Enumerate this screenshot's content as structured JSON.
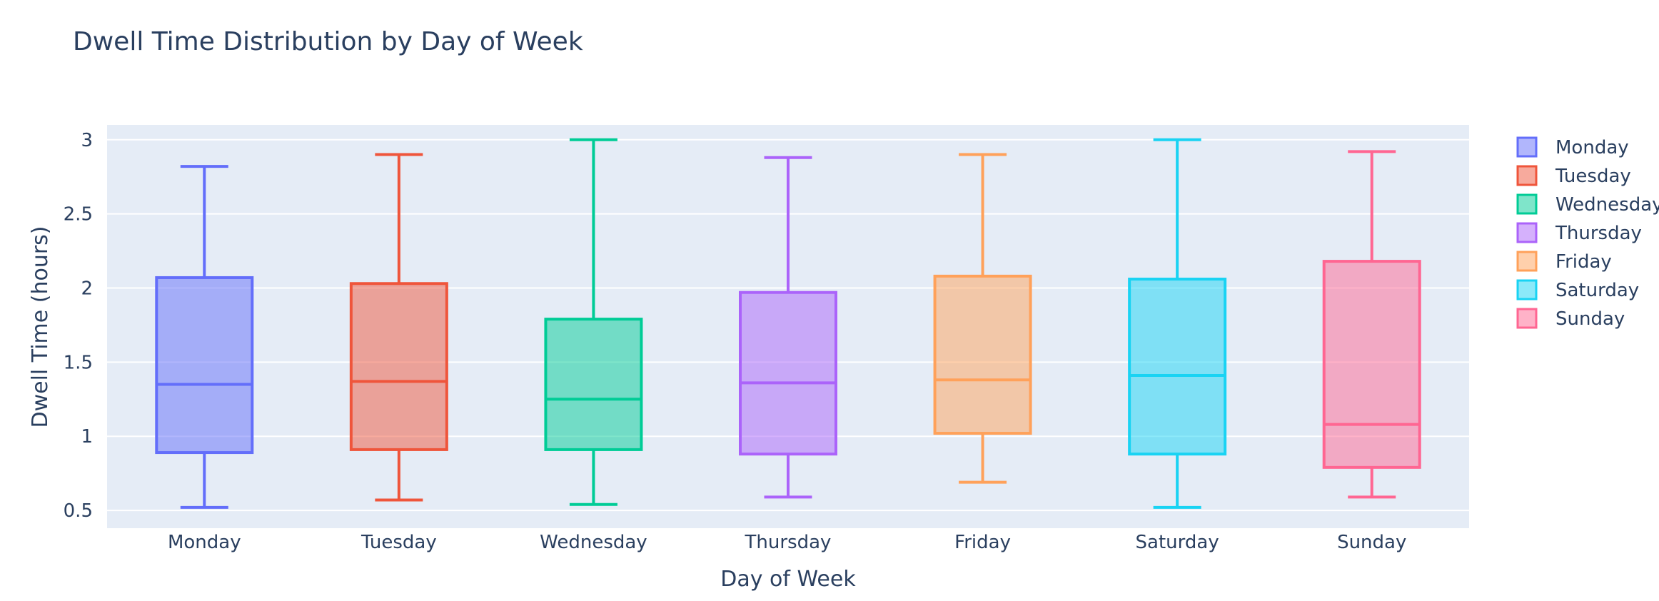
{
  "chart_data": {
    "type": "box",
    "title": "Dwell Time Distribution by Day of Week",
    "xlabel": "Day of Week",
    "ylabel": "Dwell Time (hours)",
    "ylim": [
      0.38,
      3.1
    ],
    "yticks": [
      0.5,
      1,
      1.5,
      2,
      2.5,
      3
    ],
    "ytick_labels": [
      "0.5",
      "1",
      "1.5",
      "2",
      "2.5",
      "3"
    ],
    "grid": true,
    "legend_position": "right",
    "categories": [
      "Monday",
      "Tuesday",
      "Wednesday",
      "Thursday",
      "Friday",
      "Saturday",
      "Sunday"
    ],
    "series": [
      {
        "name": "Monday",
        "color": "#636efa",
        "min": 0.52,
        "q1": 0.89,
        "median": 1.35,
        "q3": 2.07,
        "max": 2.82
      },
      {
        "name": "Tuesday",
        "color": "#EF553B",
        "min": 0.57,
        "q1": 0.91,
        "median": 1.37,
        "q3": 2.03,
        "max": 2.9
      },
      {
        "name": "Wednesday",
        "color": "#00cc96",
        "min": 0.54,
        "q1": 0.91,
        "median": 1.25,
        "q3": 1.79,
        "max": 3.0
      },
      {
        "name": "Thursday",
        "color": "#ab63fa",
        "min": 0.59,
        "q1": 0.88,
        "median": 1.36,
        "q3": 1.97,
        "max": 2.88
      },
      {
        "name": "Friday",
        "color": "#FFA15A",
        "min": 0.69,
        "q1": 1.02,
        "median": 1.38,
        "q3": 2.08,
        "max": 2.9
      },
      {
        "name": "Saturday",
        "color": "#19d3f3",
        "min": 0.52,
        "q1": 0.88,
        "median": 1.41,
        "q3": 2.06,
        "max": 3.0
      },
      {
        "name": "Sunday",
        "color": "#FF6692",
        "min": 0.59,
        "q1": 0.79,
        "median": 1.08,
        "q3": 2.18,
        "max": 2.92
      }
    ]
  }
}
